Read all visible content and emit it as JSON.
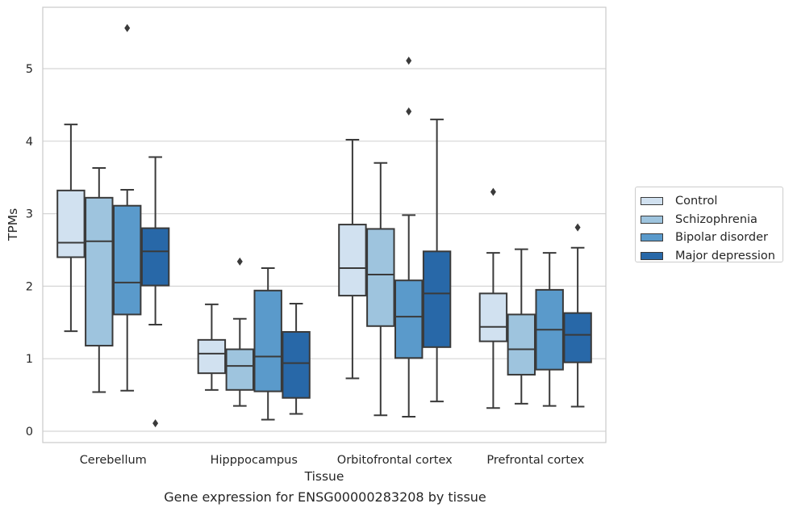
{
  "chart_data": {
    "type": "box",
    "title": "",
    "caption": "Gene expression for ENSG00000283208 by tissue",
    "xlabel": "Tissue",
    "ylabel": "TPMs",
    "ylim": [
      -0.15,
      5.85
    ],
    "yticks": [
      0,
      1,
      2,
      3,
      4,
      5
    ],
    "grid": "horizontal",
    "legend_position": "right",
    "categories": [
      "Cerebellum",
      "Hipppocampus",
      "Orbitofrontal cortex",
      "Prefrontal cortex"
    ],
    "series": [
      {
        "name": "Control",
        "color": "#d1e1f0",
        "boxes": [
          {
            "whisker_low": 1.38,
            "q1": 2.4,
            "median": 2.6,
            "q3": 3.32,
            "whisker_high": 4.23,
            "outliers": []
          },
          {
            "whisker_low": 0.57,
            "q1": 0.8,
            "median": 1.07,
            "q3": 1.26,
            "whisker_high": 1.75,
            "outliers": []
          },
          {
            "whisker_low": 0.73,
            "q1": 1.87,
            "median": 2.25,
            "q3": 2.85,
            "whisker_high": 4.02,
            "outliers": []
          },
          {
            "whisker_low": 0.32,
            "q1": 1.24,
            "median": 1.44,
            "q3": 1.9,
            "whisker_high": 2.46,
            "outliers": [
              3.3
            ]
          }
        ]
      },
      {
        "name": "Schizophrenia",
        "color": "#9ec4de",
        "boxes": [
          {
            "whisker_low": 0.54,
            "q1": 1.18,
            "median": 2.62,
            "q3": 3.22,
            "whisker_high": 3.63,
            "outliers": []
          },
          {
            "whisker_low": 0.35,
            "q1": 0.57,
            "median": 0.9,
            "q3": 1.13,
            "whisker_high": 1.55,
            "outliers": [
              2.34
            ]
          },
          {
            "whisker_low": 0.22,
            "q1": 1.45,
            "median": 2.16,
            "q3": 2.79,
            "whisker_high": 3.7,
            "outliers": []
          },
          {
            "whisker_low": 0.38,
            "q1": 0.78,
            "median": 1.13,
            "q3": 1.61,
            "whisker_high": 2.51,
            "outliers": []
          }
        ]
      },
      {
        "name": "Bipolar disorder",
        "color": "#5a9acb",
        "boxes": [
          {
            "whisker_low": 0.56,
            "q1": 1.61,
            "median": 2.05,
            "q3": 3.11,
            "whisker_high": 3.33,
            "outliers": [
              5.56
            ]
          },
          {
            "whisker_low": 0.16,
            "q1": 0.55,
            "median": 1.03,
            "q3": 1.94,
            "whisker_high": 2.25,
            "outliers": []
          },
          {
            "whisker_low": 0.2,
            "q1": 1.01,
            "median": 1.58,
            "q3": 2.08,
            "whisker_high": 2.98,
            "outliers": [
              4.41,
              5.11
            ]
          },
          {
            "whisker_low": 0.35,
            "q1": 0.85,
            "median": 1.4,
            "q3": 1.95,
            "whisker_high": 2.46,
            "outliers": []
          }
        ]
      },
      {
        "name": "Major depression",
        "color": "#2868a8",
        "boxes": [
          {
            "whisker_low": 1.47,
            "q1": 2.01,
            "median": 2.48,
            "q3": 2.8,
            "whisker_high": 3.78,
            "outliers": [
              0.11
            ]
          },
          {
            "whisker_low": 0.24,
            "q1": 0.46,
            "median": 0.94,
            "q3": 1.37,
            "whisker_high": 1.76,
            "outliers": []
          },
          {
            "whisker_low": 0.41,
            "q1": 1.16,
            "median": 1.9,
            "q3": 2.48,
            "whisker_high": 4.3,
            "outliers": []
          },
          {
            "whisker_low": 0.34,
            "q1": 0.95,
            "median": 1.33,
            "q3": 1.63,
            "whisker_high": 2.53,
            "outliers": [
              2.81
            ]
          }
        ]
      }
    ]
  }
}
